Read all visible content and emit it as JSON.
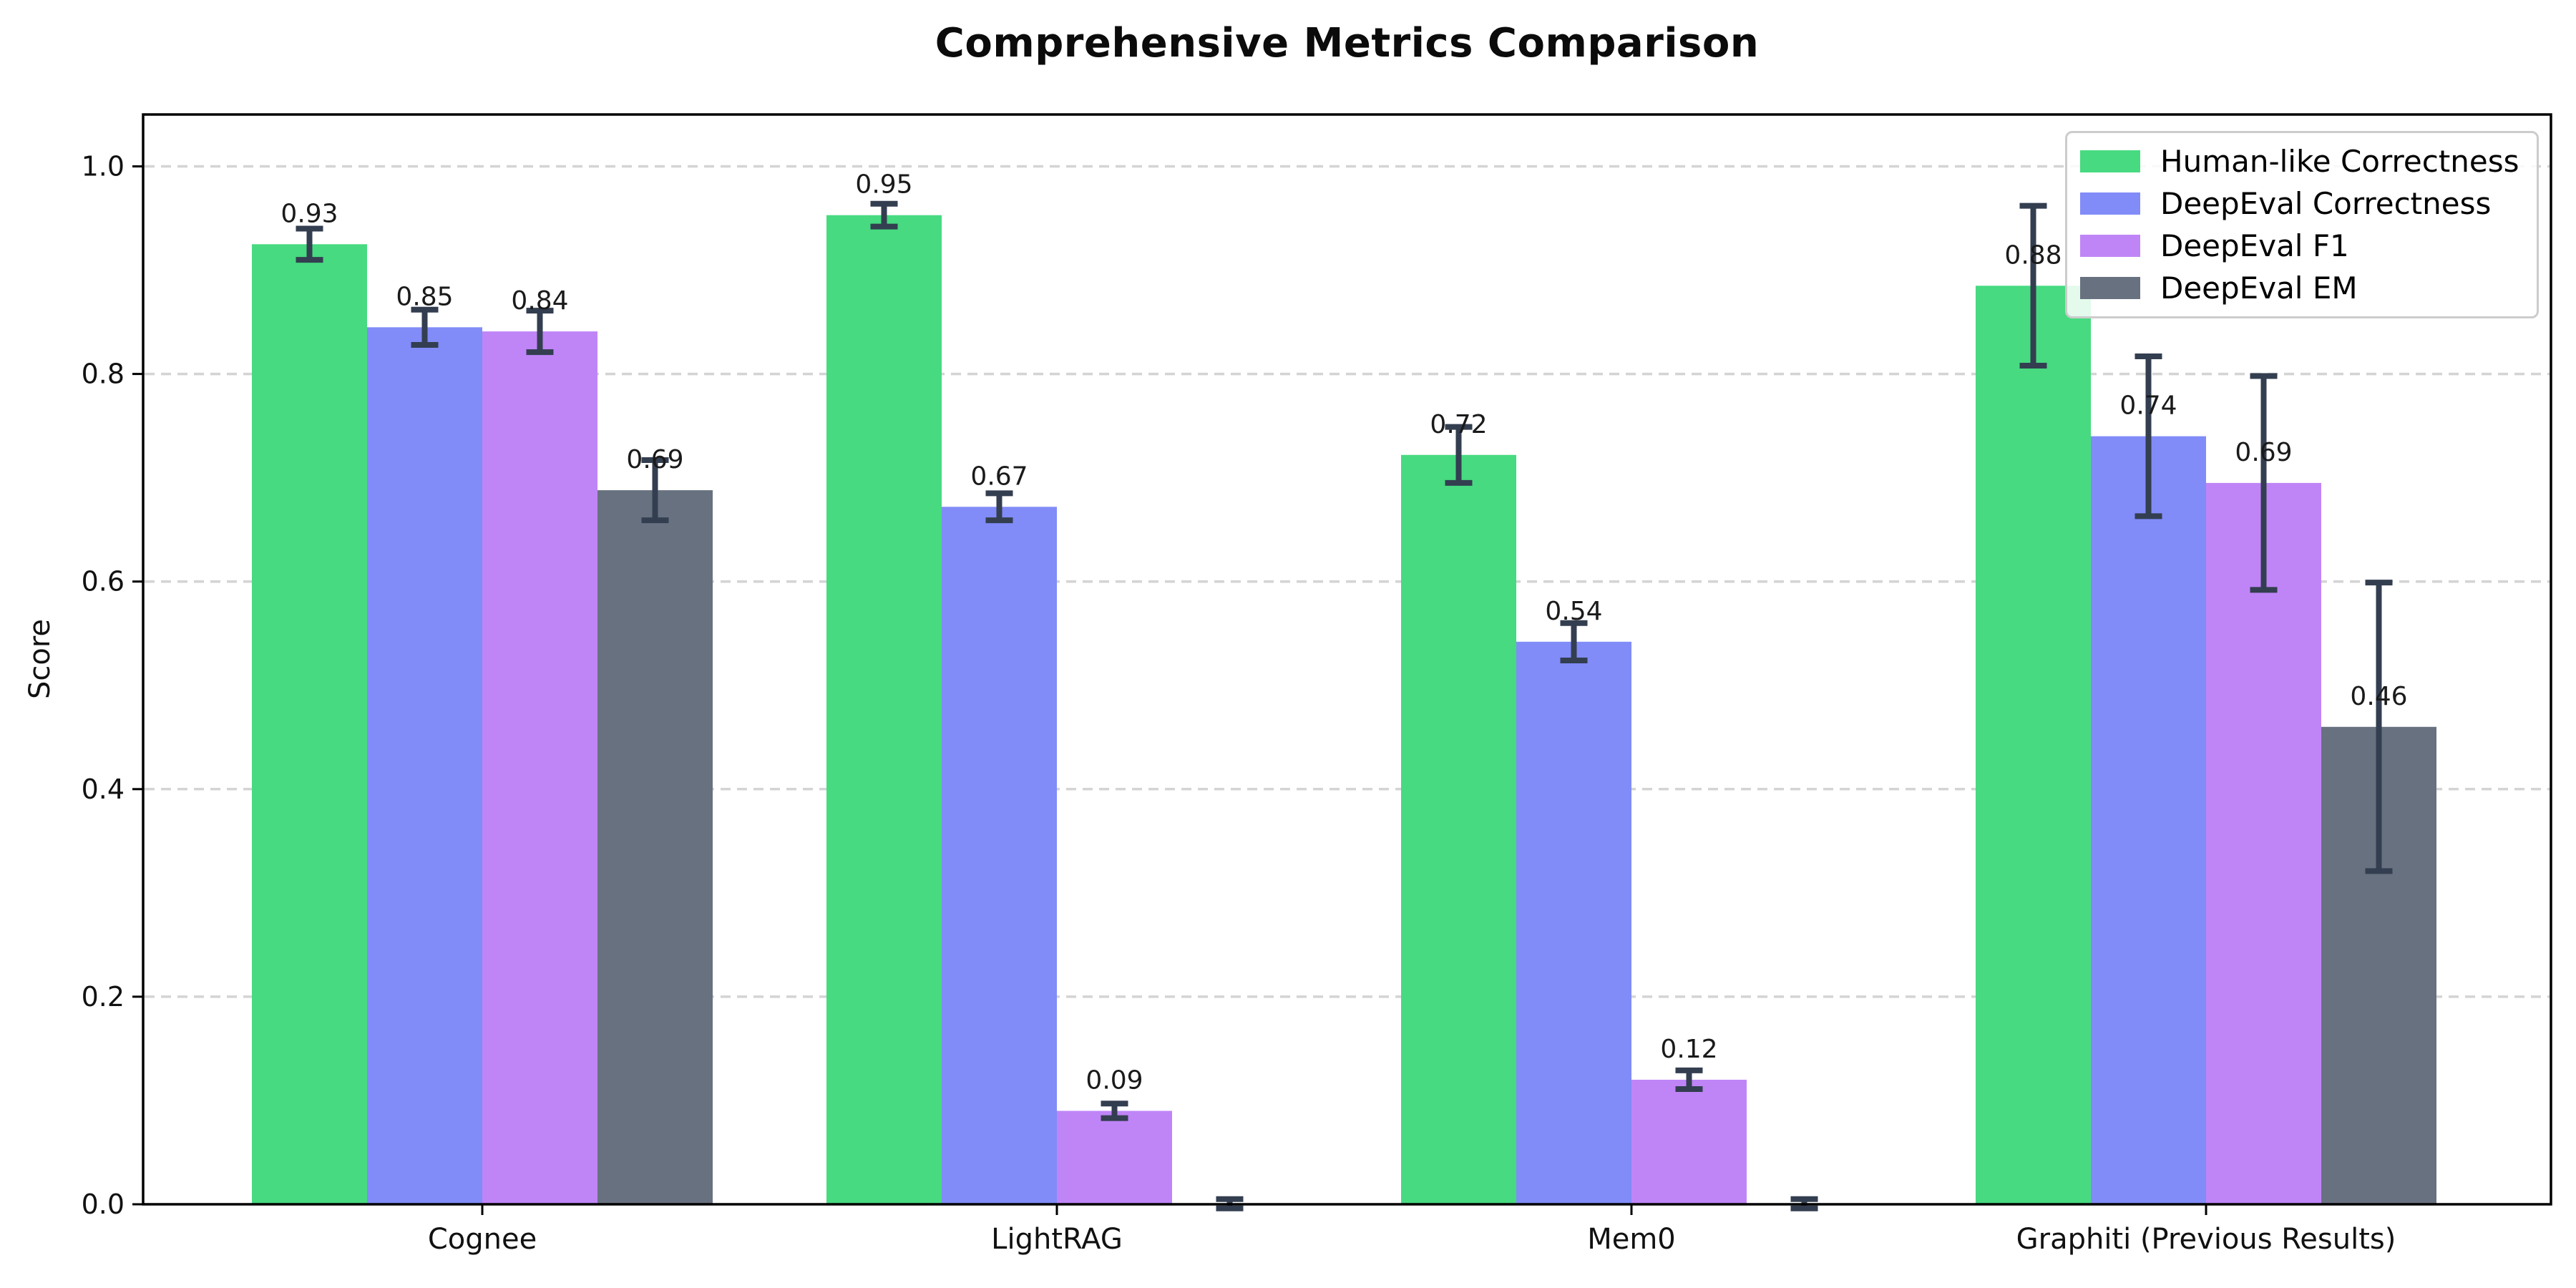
{
  "chart_data": {
    "type": "bar",
    "title": "Comprehensive Metrics Comparison",
    "xlabel": "",
    "ylabel": "Score",
    "categories": [
      "Cognee",
      "LightRAG",
      "Mem0",
      "Graphiti (Previous Results)"
    ],
    "series": [
      {
        "name": "Human-like Correctness",
        "color": "#47da80",
        "values": [
          0.925,
          0.953,
          0.722,
          0.885
        ],
        "errors": [
          0.015,
          0.011,
          0.027,
          0.077
        ],
        "labels": [
          "0.93",
          "0.95",
          "0.72",
          "0.88"
        ]
      },
      {
        "name": "DeepEval Correctness",
        "color": "#818cf8",
        "values": [
          0.845,
          0.672,
          0.542,
          0.74
        ],
        "errors": [
          0.017,
          0.013,
          0.018,
          0.077
        ],
        "labels": [
          "0.85",
          "0.67",
          "0.54",
          "0.74"
        ]
      },
      {
        "name": "DeepEval F1",
        "color": "#bf85f7",
        "values": [
          0.841,
          0.09,
          0.12,
          0.695
        ],
        "errors": [
          0.02,
          0.007,
          0.009,
          0.103
        ],
        "labels": [
          "0.84",
          "0.09",
          "0.12",
          "0.69"
        ]
      },
      {
        "name": "DeepEval EM",
        "color": "#687180",
        "values": [
          0.688,
          0.0,
          0.0,
          0.46
        ],
        "errors": [
          0.029,
          0.005,
          0.005,
          0.139
        ],
        "labels": [
          "0.69",
          "",
          "",
          "0.46"
        ]
      }
    ],
    "ylim": [
      0.0,
      1.05
    ],
    "yticks": [
      "0.0",
      "0.2",
      "0.4",
      "0.6",
      "0.8",
      "1.0"
    ],
    "grid": "horizontal-dashed",
    "legend_position": "upper-right",
    "bar_width_units": 0.2,
    "colors": {
      "errorbar": "#333e50",
      "gridline": "#d4d4d4",
      "axis": "#000000",
      "bar_label_text": "#1a1a1a",
      "tick_label_text": "#111111",
      "legend_border": "#cccccc"
    }
  }
}
